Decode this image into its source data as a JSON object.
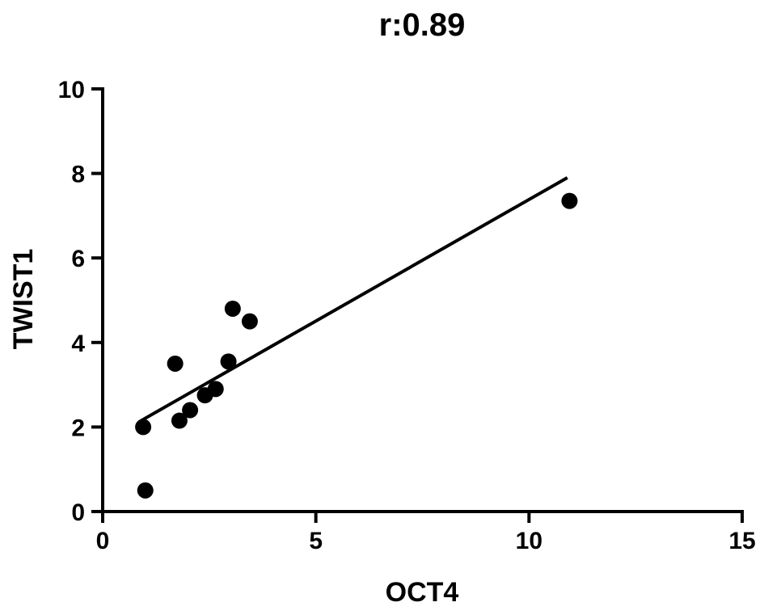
{
  "chart_data": {
    "type": "scatter",
    "title": "r:0.89",
    "xlabel": "OCT4",
    "ylabel": "TWIST1",
    "xlim": [
      0,
      15
    ],
    "ylim": [
      0,
      10
    ],
    "x_ticks": [
      0,
      5,
      10,
      15
    ],
    "y_ticks": [
      0,
      2,
      4,
      6,
      8,
      10
    ],
    "x_tick_labels": [
      "0",
      "5",
      "10",
      "15"
    ],
    "y_tick_labels": [
      "0",
      "2",
      "4",
      "6",
      "8",
      "10"
    ],
    "grid": false,
    "points": [
      {
        "x": 0.95,
        "y": 2.0
      },
      {
        "x": 1.0,
        "y": 0.5
      },
      {
        "x": 1.7,
        "y": 3.5
      },
      {
        "x": 1.8,
        "y": 2.15
      },
      {
        "x": 2.05,
        "y": 2.4
      },
      {
        "x": 2.4,
        "y": 2.75
      },
      {
        "x": 2.65,
        "y": 2.9
      },
      {
        "x": 2.95,
        "y": 3.55
      },
      {
        "x": 3.05,
        "y": 4.8
      },
      {
        "x": 3.45,
        "y": 4.5
      },
      {
        "x": 10.95,
        "y": 7.35
      }
    ],
    "regression_line": {
      "x": [
        0.9,
        10.9
      ],
      "y": [
        2.15,
        7.9
      ]
    },
    "colors": {
      "marker": "#000000",
      "line": "#000000",
      "axis": "#000000"
    }
  }
}
